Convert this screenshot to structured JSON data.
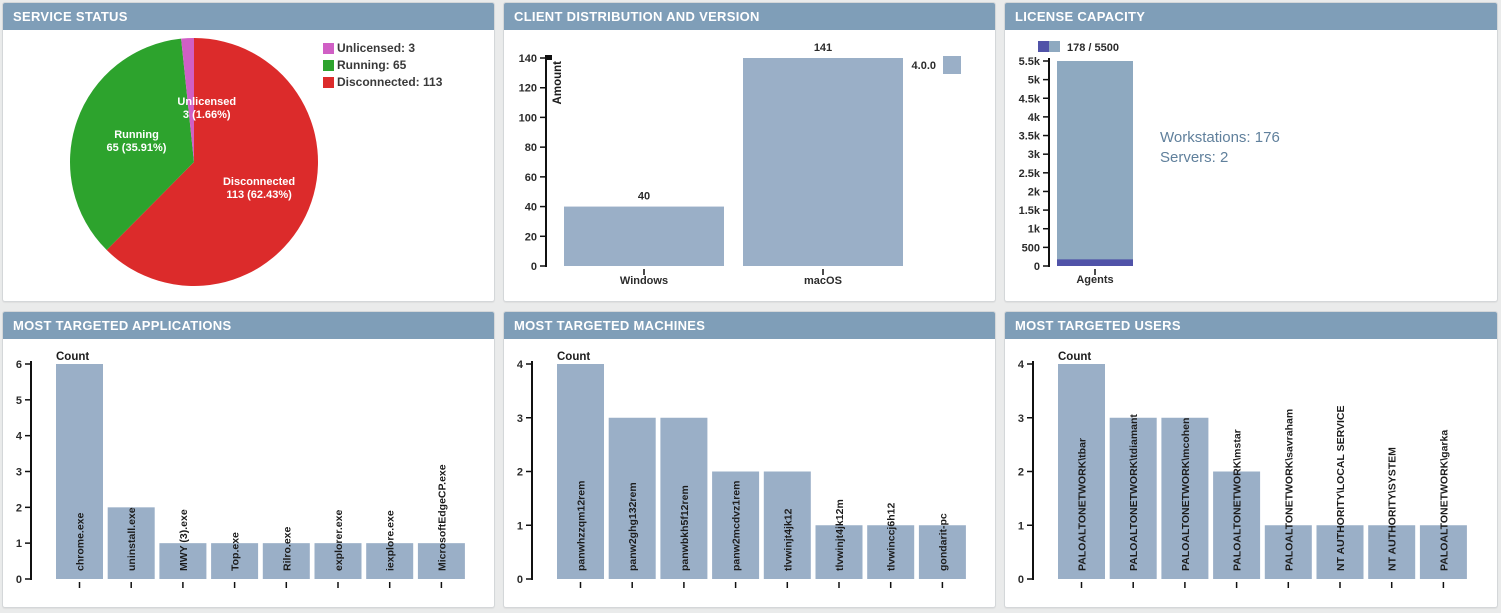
{
  "panels": [
    {
      "id": "service-status",
      "title": "SERVICE STATUS"
    },
    {
      "id": "client-distribution",
      "title": "CLIENT DISTRIBUTION AND VERSION"
    },
    {
      "id": "license-capacity",
      "title": "LICENSE CAPACITY"
    },
    {
      "id": "targeted-apps",
      "title": "MOST TARGETED APPLICATIONS"
    },
    {
      "id": "targeted-machines",
      "title": "MOST TARGETED MACHINES"
    },
    {
      "id": "targeted-users",
      "title": "MOST TARGETED USERS"
    }
  ],
  "colors": {
    "header": "#7f9eb8",
    "bar": "#9aafc7",
    "license_capacity_bar": "#8ea9c0",
    "license_used_bar": "#5053a8",
    "pie_unlicensed": "#d05fc5",
    "pie_running": "#2da32d",
    "pie_disconnected": "#dc2b2b",
    "axis": "#111111",
    "tick_text": "#2b2b2b",
    "annotation_text": "#60809c"
  },
  "chart_data": [
    {
      "panel": "service-status",
      "type": "pie",
      "slices": [
        {
          "label": "Unlicensed",
          "value": 3,
          "pct": "1.66%",
          "color": "#d05fc5",
          "legend": "Unlicensed: 3"
        },
        {
          "label": "Running",
          "value": 65,
          "pct": "35.91%",
          "color": "#2da32d",
          "legend": "Running: 65"
        },
        {
          "label": "Disconnected",
          "value": 113,
          "pct": "62.43%",
          "color": "#dc2b2b",
          "legend": "Disconnected: 113"
        }
      ],
      "legend_position": "top-right"
    },
    {
      "panel": "client-distribution",
      "type": "bar",
      "categories": [
        "Windows",
        "macOS"
      ],
      "values": [
        40,
        141
      ],
      "ylabel": "Amount",
      "ylim": [
        0,
        140
      ],
      "yticks": [
        0,
        20,
        40,
        60,
        80,
        100,
        120,
        140
      ],
      "bar_color": "#9aafc7",
      "value_labels": [
        40,
        141
      ],
      "legend": [
        {
          "label": "4.0.0",
          "color": "#9aafc7"
        }
      ]
    },
    {
      "panel": "license-capacity",
      "type": "stacked-bar",
      "categories": [
        "Agents"
      ],
      "series": [
        {
          "name": "used",
          "values": [
            178
          ],
          "color": "#5053a8"
        },
        {
          "name": "capacity",
          "values": [
            5500
          ],
          "color": "#8ea9c0"
        }
      ],
      "legend_label": "178 / 5500",
      "ylim": [
        0,
        5500
      ],
      "yticks": [
        "0",
        "500",
        "1k",
        "1.5k",
        "2k",
        "2.5k",
        "3k",
        "3.5k",
        "4k",
        "4.5k",
        "5k",
        "5.5k"
      ],
      "annotations": [
        "Workstations: 176",
        "Servers: 2"
      ]
    },
    {
      "panel": "targeted-apps",
      "type": "bar",
      "categories": [
        "chrome.exe",
        "uninstall.exe",
        "MWY (3).exe",
        "Top.exe",
        "Rilro.exe",
        "explorer.exe",
        "iexplore.exe",
        "MicrosoftEdgeCP.exe"
      ],
      "values": [
        6,
        2,
        1,
        1,
        1,
        1,
        1,
        1
      ],
      "ylabel": "Count",
      "ylim": [
        0,
        6
      ],
      "yticks": [
        0,
        1,
        2,
        3,
        4,
        5,
        6
      ],
      "bar_color": "#9aafc7",
      "label_style": "rotated"
    },
    {
      "panel": "targeted-machines",
      "type": "bar",
      "categories": [
        "panwhzzqm12rem",
        "panw2ghg132rem",
        "panwbkh5f12rem",
        "panw2mcdvz1rem",
        "tlvwinjt4jk12",
        "tlvwinjt4jk12m",
        "tlvwinccj6h12",
        "gondarit-pc"
      ],
      "values": [
        4,
        3,
        3,
        2,
        2,
        1,
        1,
        1
      ],
      "ylabel": "Count",
      "ylim": [
        0,
        4
      ],
      "yticks": [
        0,
        1,
        2,
        3,
        4
      ],
      "bar_color": "#9aafc7",
      "label_style": "rotated"
    },
    {
      "panel": "targeted-users",
      "type": "bar",
      "categories": [
        "PALOALTONETWORK\\tbar",
        "PALOALTONETWORK\\tdiamant",
        "PALOALTONETWORK\\mcohen",
        "PALOALTONETWORK\\mstar",
        "PALOALTONETWORK\\savraham",
        "NT AUTHORITY\\LOCAL SERVICE",
        "NT AUTHORITY\\SYSTEM",
        "PALOALTONETWORK\\garka"
      ],
      "values": [
        4,
        3,
        3,
        2,
        1,
        1,
        1,
        1
      ],
      "ylabel": "Count",
      "ylim": [
        0,
        4
      ],
      "yticks": [
        0,
        1,
        2,
        3,
        4
      ],
      "bar_color": "#9aafc7",
      "label_style": "rotated"
    }
  ]
}
